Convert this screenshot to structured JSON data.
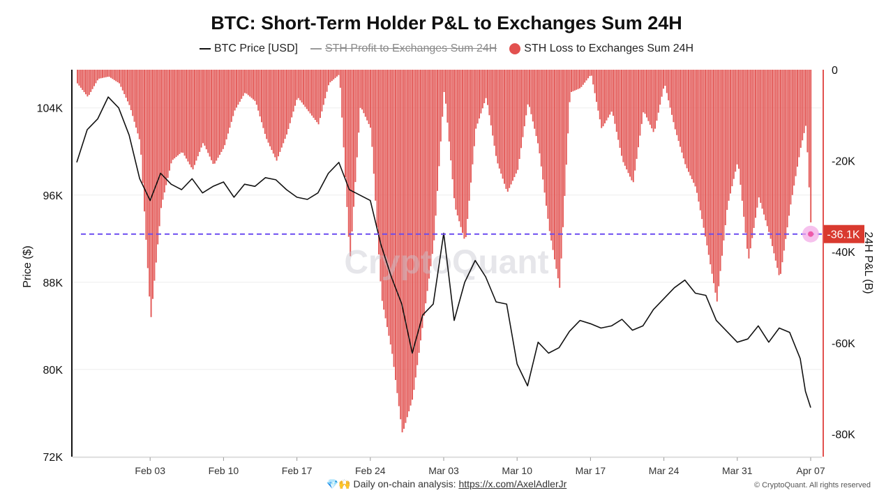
{
  "title": "BTC: Short-Term Holder P&L to Exchanges Sum 24H",
  "legend": [
    {
      "label": "BTC Price [USD]",
      "marker": "line",
      "color": "#111111",
      "active": true
    },
    {
      "label": "STH Profit to Exchanges Sum 24H",
      "marker": "line",
      "color": "#999999",
      "active": false
    },
    {
      "label": "STH Loss to Exchanges Sum 24H",
      "marker": "dot",
      "color": "#e2514f",
      "active": true
    }
  ],
  "watermark": "CryptoQuant",
  "footer": {
    "emoji": "💎🙌",
    "text": "Daily on-chain analysis:",
    "link": "https://x.com/AxelAdlerJr"
  },
  "copyright": "© CryptoQuant. All rights reserved",
  "colors": {
    "price": "#111111",
    "loss": "#e2514f",
    "marker_line": "#6b4cf0",
    "marker_label_bg": "#d93a2f",
    "right_axis": "#e2514f"
  },
  "chart_data": {
    "type": "line",
    "x_axis": {
      "ticks": [
        "Feb 03",
        "Feb 10",
        "Feb 17",
        "Feb 24",
        "Mar 03",
        "Mar 10",
        "Mar 17",
        "Mar 24",
        "Mar 31",
        "Apr 07"
      ],
      "range": [
        "2025-01-27",
        "2025-04-07"
      ]
    },
    "y_left": {
      "label": "Price ($)",
      "ticks": [
        "104K",
        "96K",
        "88K",
        "80K",
        "72K"
      ],
      "range": [
        72000,
        107500
      ]
    },
    "y_right": {
      "label": "24H P&L (B)",
      "ticks": [
        "0",
        "-20K",
        "-40K",
        "-60K",
        "-80K"
      ],
      "range": [
        -85000,
        0
      ]
    },
    "marker": {
      "value": -36100,
      "label": "-36.1K"
    },
    "series": [
      {
        "name": "BTC Price [USD]",
        "axis": "left",
        "points": [
          [
            "2025-01-27",
            99000
          ],
          [
            "2025-01-28",
            102000
          ],
          [
            "2025-01-29",
            103000
          ],
          [
            "2025-01-30",
            105000
          ],
          [
            "2025-01-31",
            104000
          ],
          [
            "2025-02-01",
            101500
          ],
          [
            "2025-02-02",
            97500
          ],
          [
            "2025-02-03",
            95500
          ],
          [
            "2025-02-04",
            98000
          ],
          [
            "2025-02-05",
            97000
          ],
          [
            "2025-02-06",
            96500
          ],
          [
            "2025-02-07",
            97500
          ],
          [
            "2025-02-08",
            96200
          ],
          [
            "2025-02-09",
            96800
          ],
          [
            "2025-02-10",
            97200
          ],
          [
            "2025-02-11",
            95800
          ],
          [
            "2025-02-12",
            97000
          ],
          [
            "2025-02-13",
            96800
          ],
          [
            "2025-02-14",
            97600
          ],
          [
            "2025-02-15",
            97400
          ],
          [
            "2025-02-16",
            96500
          ],
          [
            "2025-02-17",
            95800
          ],
          [
            "2025-02-18",
            95600
          ],
          [
            "2025-02-19",
            96200
          ],
          [
            "2025-02-20",
            98000
          ],
          [
            "2025-02-21",
            99000
          ],
          [
            "2025-02-22",
            96500
          ],
          [
            "2025-02-23",
            96000
          ],
          [
            "2025-02-24",
            95500
          ],
          [
            "2025-02-25",
            91500
          ],
          [
            "2025-02-26",
            88500
          ],
          [
            "2025-02-27",
            86000
          ],
          [
            "2025-02-28",
            81500
          ],
          [
            "2025-03-01",
            85000
          ],
          [
            "2025-03-02",
            86000
          ],
          [
            "2025-03-03",
            92500
          ],
          [
            "2025-03-04",
            84500
          ],
          [
            "2025-03-05",
            88000
          ],
          [
            "2025-03-06",
            90000
          ],
          [
            "2025-03-07",
            88500
          ],
          [
            "2025-03-08",
            86200
          ],
          [
            "2025-03-09",
            86000
          ],
          [
            "2025-03-10",
            80500
          ],
          [
            "2025-03-11",
            78500
          ],
          [
            "2025-03-12",
            82500
          ],
          [
            "2025-03-13",
            81500
          ],
          [
            "2025-03-14",
            82000
          ],
          [
            "2025-03-15",
            83500
          ],
          [
            "2025-03-16",
            84500
          ],
          [
            "2025-03-17",
            84200
          ],
          [
            "2025-03-18",
            83800
          ],
          [
            "2025-03-19",
            84000
          ],
          [
            "2025-03-20",
            84600
          ],
          [
            "2025-03-21",
            83600
          ],
          [
            "2025-03-22",
            84000
          ],
          [
            "2025-03-23",
            85500
          ],
          [
            "2025-03-24",
            86500
          ],
          [
            "2025-03-25",
            87500
          ],
          [
            "2025-03-26",
            88200
          ],
          [
            "2025-03-27",
            87000
          ],
          [
            "2025-03-28",
            86800
          ],
          [
            "2025-03-29",
            84500
          ],
          [
            "2025-03-30",
            83500
          ],
          [
            "2025-03-31",
            82500
          ],
          [
            "2025-04-01",
            82800
          ],
          [
            "2025-04-02",
            84000
          ],
          [
            "2025-04-03",
            82500
          ],
          [
            "2025-04-04",
            83800
          ],
          [
            "2025-04-05",
            83400
          ],
          [
            "2025-04-06",
            81000
          ],
          [
            "2025-04-06T12:00",
            78000
          ],
          [
            "2025-04-07",
            76500
          ]
        ]
      },
      {
        "name": "STH Loss to Exchanges Sum 24H",
        "axis": "right",
        "points": [
          [
            "2025-01-27",
            -3000
          ],
          [
            "2025-01-28",
            -6000
          ],
          [
            "2025-01-29",
            -2000
          ],
          [
            "2025-01-30",
            -1500
          ],
          [
            "2025-01-31",
            -3000
          ],
          [
            "2025-02-01",
            -8000
          ],
          [
            "2025-02-02",
            -16000
          ],
          [
            "2025-02-03",
            -55000
          ],
          [
            "2025-02-04",
            -30000
          ],
          [
            "2025-02-05",
            -20000
          ],
          [
            "2025-02-06",
            -18000
          ],
          [
            "2025-02-07",
            -22000
          ],
          [
            "2025-02-08",
            -16000
          ],
          [
            "2025-02-09",
            -21000
          ],
          [
            "2025-02-10",
            -17000
          ],
          [
            "2025-02-11",
            -9000
          ],
          [
            "2025-02-12",
            -5000
          ],
          [
            "2025-02-13",
            -7000
          ],
          [
            "2025-02-14",
            -15000
          ],
          [
            "2025-02-15",
            -20000
          ],
          [
            "2025-02-16",
            -14000
          ],
          [
            "2025-02-17",
            -6000
          ],
          [
            "2025-02-18",
            -9000
          ],
          [
            "2025-02-19",
            -12000
          ],
          [
            "2025-02-20",
            -3000
          ],
          [
            "2025-02-21",
            -1000
          ],
          [
            "2025-02-22",
            -42000
          ],
          [
            "2025-02-23",
            -8000
          ],
          [
            "2025-02-24",
            -13000
          ],
          [
            "2025-02-25",
            -50000
          ],
          [
            "2025-02-26",
            -62000
          ],
          [
            "2025-02-27",
            -80000
          ],
          [
            "2025-02-28",
            -72000
          ],
          [
            "2025-03-01",
            -55000
          ],
          [
            "2025-03-02",
            -38000
          ],
          [
            "2025-03-03",
            -4000
          ],
          [
            "2025-03-04",
            -30000
          ],
          [
            "2025-03-05",
            -38000
          ],
          [
            "2025-03-06",
            -13000
          ],
          [
            "2025-03-07",
            -6000
          ],
          [
            "2025-03-08",
            -20000
          ],
          [
            "2025-03-09",
            -27000
          ],
          [
            "2025-03-10",
            -22000
          ],
          [
            "2025-03-11",
            -7000
          ],
          [
            "2025-03-12",
            -17000
          ],
          [
            "2025-03-13",
            -35000
          ],
          [
            "2025-03-14",
            -48000
          ],
          [
            "2025-03-15",
            -5000
          ],
          [
            "2025-03-16",
            -4000
          ],
          [
            "2025-03-17",
            -1000
          ],
          [
            "2025-03-18",
            -13000
          ],
          [
            "2025-03-19",
            -9000
          ],
          [
            "2025-03-20",
            -20000
          ],
          [
            "2025-03-21",
            -25000
          ],
          [
            "2025-03-22",
            -9000
          ],
          [
            "2025-03-23",
            -14000
          ],
          [
            "2025-03-24",
            -3000
          ],
          [
            "2025-03-25",
            -13000
          ],
          [
            "2025-03-26",
            -21000
          ],
          [
            "2025-03-27",
            -26000
          ],
          [
            "2025-03-28",
            -38000
          ],
          [
            "2025-03-29",
            -51000
          ],
          [
            "2025-03-30",
            -30000
          ],
          [
            "2025-03-31",
            -20000
          ],
          [
            "2025-04-01",
            -42000
          ],
          [
            "2025-04-02",
            -28000
          ],
          [
            "2025-04-03",
            -36000
          ],
          [
            "2025-04-04",
            -46000
          ],
          [
            "2025-04-05",
            -30000
          ],
          [
            "2025-04-06",
            -17000
          ],
          [
            "2025-04-06T12:00",
            -12000
          ],
          [
            "2025-04-07",
            -36100
          ]
        ]
      }
    ]
  }
}
